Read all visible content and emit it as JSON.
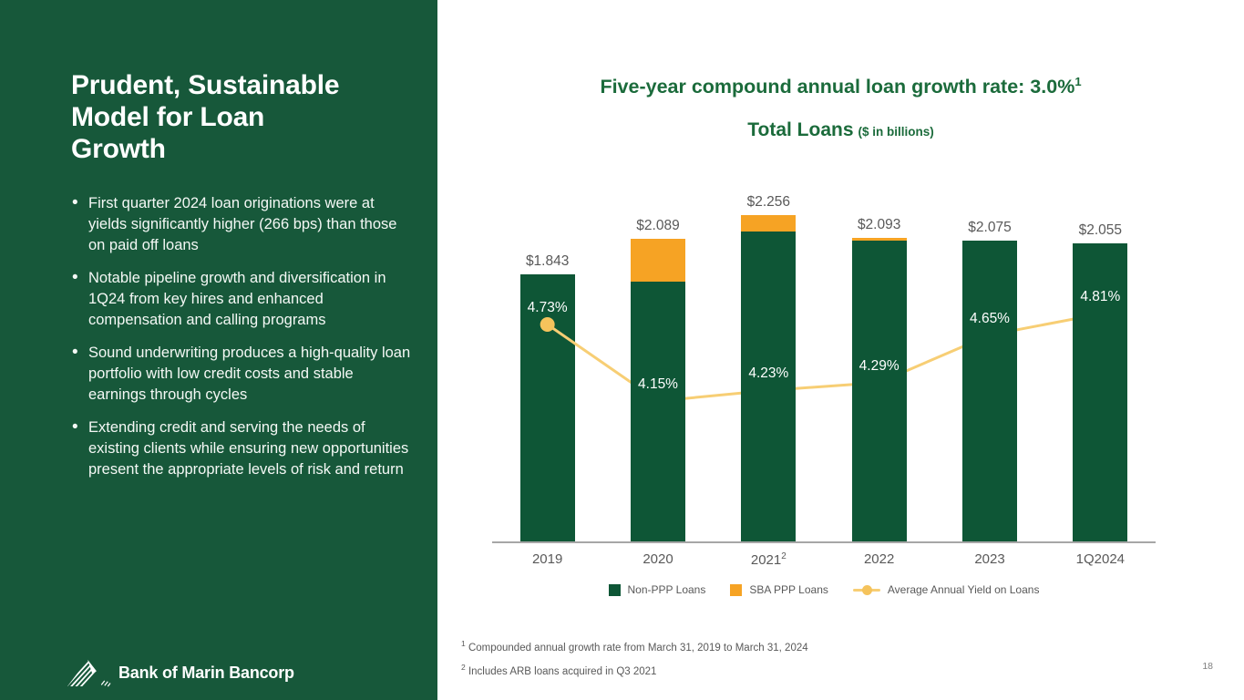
{
  "slide": {
    "page_number": "18"
  },
  "sidebar": {
    "title_lines": [
      "Prudent, Sustainable",
      "Model for Loan",
      "Growth"
    ],
    "bullets": [
      "First quarter 2024 loan originations were at yields significantly higher (266 bps) than those on paid off loans",
      "Notable pipeline growth and diversification in 1Q24 from key hires and enhanced compensation and calling programs",
      "Sound underwriting produces a high-quality loan portfolio with low credit costs and stable earnings through cycles",
      "Extending credit and serving the needs of existing clients while ensuring new opportunities present the appropriate levels of risk and return"
    ],
    "logo_text": "Bank of Marin Bancorp"
  },
  "chart_header": {
    "title": "Five-year compound annual loan growth rate: 3.0%",
    "title_superscript": "1",
    "subtitle": "Total Loans",
    "subtitle_note": "($ in billions)"
  },
  "chart_data": {
    "type": "bar",
    "subtype": "stacked-bars-with-line-overlay",
    "title": "Total Loans ($ in billions)",
    "categories": [
      "2019",
      "2020",
      "2021",
      "2022",
      "2023",
      "1Q2024"
    ],
    "category_superscripts": [
      "",
      "",
      "2",
      "",
      "",
      ""
    ],
    "totals": [
      1.843,
      2.089,
      2.256,
      2.093,
      2.075,
      2.055
    ],
    "total_labels": [
      "$1.843",
      "$2.089",
      "$2.256",
      "$2.093",
      "$2.075",
      "$2.055"
    ],
    "series": [
      {
        "name": "Non-PPP Loans",
        "type": "bar",
        "values": [
          1.843,
          1.795,
          2.14,
          2.08,
          2.075,
          2.055
        ]
      },
      {
        "name": "SBA PPP Loans",
        "type": "bar",
        "values_estimated": true,
        "values": [
          0,
          0.294,
          0.116,
          0.013,
          0,
          0
        ]
      },
      {
        "name": "Average Annual Yield on Loans",
        "type": "line",
        "unit": "%",
        "values": [
          4.73,
          4.15,
          4.23,
          4.29,
          4.65,
          4.81
        ],
        "labels": [
          "4.73%",
          "4.15%",
          "4.23%",
          "4.29%",
          "4.65%",
          "4.81%"
        ]
      }
    ],
    "bar_axis_range": [
      0,
      2.256
    ],
    "grid": false,
    "legend_position": "bottom"
  },
  "footnotes": [
    {
      "sup": "1",
      "text": "Compounded annual growth rate from March 31, 2019 to March 31, 2024"
    },
    {
      "sup": "2",
      "text": "Includes ARB loans acquired in Q3 2021"
    }
  ],
  "colors": {
    "sidebar_green": "#17583A",
    "bar_green": "#0E5636",
    "ppp_orange": "#F6A324",
    "yield_line": "#F7CE74",
    "yield_marker": "#F5C35C",
    "title_green": "#1B6B3B",
    "label_gray": "#595959",
    "axis_gray": "#A6A6A6",
    "footnote_gray": "#595959",
    "page_gray": "#808080"
  }
}
